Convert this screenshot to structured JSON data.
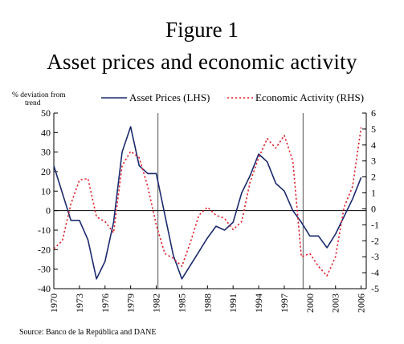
{
  "figure": {
    "title": "Figure 1",
    "subtitle": "Asset prices and economic activity",
    "source": "Source: Banco de la República and DANE"
  },
  "colors": {
    "asset_line": "#1b2a6e",
    "activity_line": "#e0202a",
    "axis": "#000000",
    "vline": "#555555"
  },
  "chart_data": {
    "type": "line",
    "title": "",
    "lhs_unit_label": [
      "% deviation from",
      "trend"
    ],
    "ylim_left": [
      -40,
      50
    ],
    "yticks_left": [
      -40,
      -30,
      -20,
      -10,
      0,
      10,
      20,
      30,
      40,
      50
    ],
    "ylim_right": [
      -5,
      6
    ],
    "yticks_right": [
      -5,
      -4,
      -3,
      -2,
      -1,
      0,
      1,
      2,
      3,
      4,
      5,
      6
    ],
    "xlim": [
      1970,
      2006.6
    ],
    "xticks": [
      1970,
      1973,
      1976,
      1979,
      1982,
      1985,
      1988,
      1991,
      1994,
      1997,
      2000,
      2003,
      2006
    ],
    "vertical_lines": [
      1982.2,
      1999.2
    ],
    "legend_position": "top",
    "series": [
      {
        "name": "Asset Prices (LHS)",
        "axis": "left",
        "style": "solid",
        "x": [
          1970,
          1971,
          1972,
          1973,
          1974,
          1975,
          1976,
          1977,
          1978,
          1979,
          1980,
          1981,
          1982,
          1983,
          1984,
          1985,
          1986,
          1987,
          1988,
          1989,
          1990,
          1991,
          1992,
          1993,
          1994,
          1995,
          1996,
          1997,
          1998,
          1999,
          2000,
          2001,
          2002,
          2003,
          2004,
          2005,
          2006
        ],
        "values": [
          23,
          9,
          -5,
          -5,
          -15,
          -35,
          -26,
          -6,
          30,
          43,
          23,
          19,
          19,
          -2,
          -23,
          -35,
          -28,
          -21,
          -14,
          -8,
          -10,
          -6,
          9,
          18,
          29,
          25,
          14,
          10,
          0,
          -6,
          -13,
          -13,
          -19,
          -12,
          -3,
          6,
          17
        ]
      },
      {
        "name": "Economic Activity (RHS)",
        "axis": "right",
        "style": "dotted",
        "x": [
          1970,
          1971,
          1972,
          1973,
          1974,
          1975,
          1976,
          1977,
          1978,
          1979,
          1980,
          1981,
          1982,
          1983,
          1984,
          1985,
          1986,
          1987,
          1988,
          1989,
          1990,
          1991,
          1992,
          1993,
          1994,
          1995,
          1996,
          1997,
          1998,
          1999,
          2000,
          2001,
          2002,
          2003,
          2004,
          2005,
          2006
        ],
        "values": [
          -2.5,
          -2,
          0.3,
          1.8,
          1.9,
          -0.5,
          -0.8,
          -1.5,
          2.7,
          3.6,
          3.2,
          1.4,
          -1,
          -2.8,
          -3.1,
          -3.6,
          -2.1,
          -0.4,
          0.1,
          -0.4,
          -0.6,
          -1.3,
          -0.8,
          1.7,
          3.2,
          4.4,
          3.8,
          4.6,
          3,
          -3,
          -2.8,
          -3.6,
          -4.2,
          -3,
          0.1,
          1.4,
          5.1
        ]
      }
    ]
  }
}
